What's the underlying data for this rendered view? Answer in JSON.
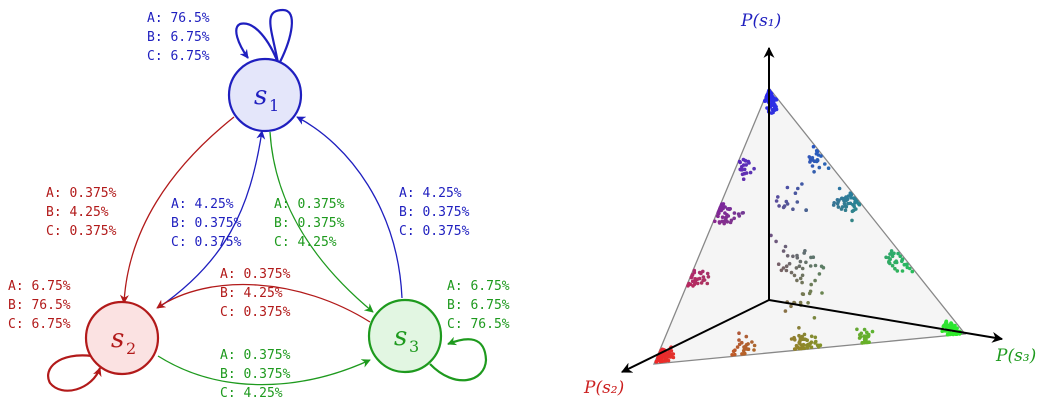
{
  "colors": {
    "s1": "#1f1fbf",
    "s1_fill": "#e4e6fa",
    "s2": "#b21a1a",
    "s2_fill": "#fbe2e2",
    "s3": "#1e9a1e",
    "s3_fill": "#e2f6e2",
    "edge_gray": "#888888"
  },
  "states": {
    "s1": {
      "sym": "s",
      "sub": "1"
    },
    "s2": {
      "sym": "s",
      "sub": "2"
    },
    "s3": {
      "sym": "s",
      "sub": "3"
    }
  },
  "labels": {
    "s1_self": {
      "A": "76.5%",
      "B": "6.75%",
      "C": "6.75%"
    },
    "s2_self": {
      "A": "6.75%",
      "B": "76.5%",
      "C": "6.75%"
    },
    "s3_self": {
      "A": "6.75%",
      "B": "6.75%",
      "C": "76.5%"
    },
    "s1_to_s2": {
      "A": "0.375%",
      "B": "4.25%",
      "C": "0.375%"
    },
    "s2_to_s1": {
      "A": "4.25%",
      "B": "0.375%",
      "C": "0.375%"
    },
    "s1_to_s3": {
      "A": "0.375%",
      "B": "0.375%",
      "C": "4.25%"
    },
    "s3_to_s1": {
      "A": "4.25%",
      "B": "0.375%",
      "C": "0.375%"
    },
    "s3_to_s2": {
      "A": "0.375%",
      "B": "4.25%",
      "C": "0.375%"
    },
    "s2_to_s3": {
      "A": "0.375%",
      "B": "0.375%",
      "C": "4.25%"
    }
  },
  "simplex": {
    "axis_p1": "P(s₁)",
    "axis_p2": "P(s₂)",
    "axis_p3": "P(s₃)"
  }
}
